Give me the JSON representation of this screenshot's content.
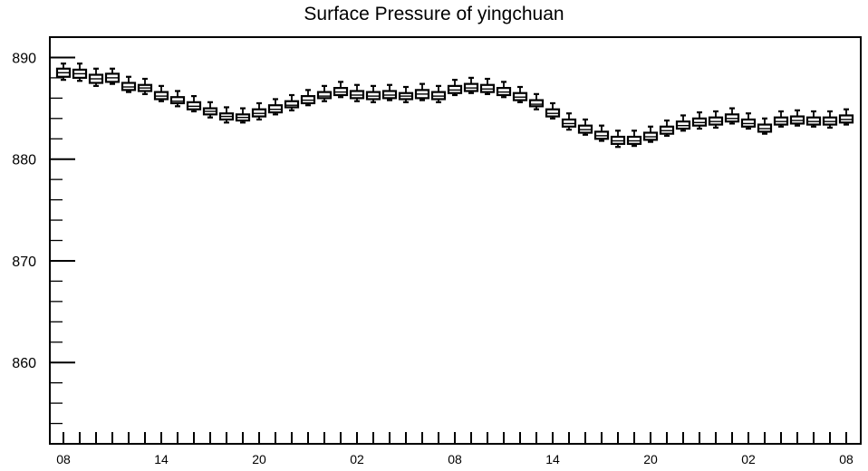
{
  "chart_data": {
    "type": "box",
    "title": "Surface Pressure of yingchuan",
    "xlabel": "",
    "ylabel": "",
    "ylim": [
      852,
      892
    ],
    "y_ticks": [
      "860",
      "870",
      "880",
      "890"
    ],
    "x_tick_labels": [
      "08",
      "14",
      "20",
      "02",
      "08",
      "14",
      "20",
      "02",
      "08"
    ],
    "grid": false,
    "boxes": [
      {
        "hour": 0,
        "whisker_low": 887.8,
        "q1": 888.1,
        "median": 888.5,
        "q3": 888.9,
        "whisker_high": 889.4
      },
      {
        "hour": 1,
        "whisker_low": 887.7,
        "q1": 888.0,
        "median": 888.4,
        "q3": 888.8,
        "whisker_high": 889.4
      },
      {
        "hour": 2,
        "whisker_low": 887.2,
        "q1": 887.5,
        "median": 887.9,
        "q3": 888.3,
        "whisker_high": 888.9
      },
      {
        "hour": 3,
        "whisker_low": 887.4,
        "q1": 887.6,
        "median": 888.0,
        "q3": 888.4,
        "whisker_high": 888.9
      },
      {
        "hour": 4,
        "whisker_low": 886.6,
        "q1": 886.8,
        "median": 887.1,
        "q3": 887.5,
        "whisker_high": 888.1
      },
      {
        "hour": 5,
        "whisker_low": 886.4,
        "q1": 886.7,
        "median": 887.0,
        "q3": 887.3,
        "whisker_high": 887.9
      },
      {
        "hour": 6,
        "whisker_low": 885.7,
        "q1": 885.9,
        "median": 886.2,
        "q3": 886.6,
        "whisker_high": 887.2
      },
      {
        "hour": 7,
        "whisker_low": 885.2,
        "q1": 885.5,
        "median": 885.7,
        "q3": 886.1,
        "whisker_high": 886.7
      },
      {
        "hour": 8,
        "whisker_low": 884.7,
        "q1": 884.9,
        "median": 885.2,
        "q3": 885.6,
        "whisker_high": 886.2
      },
      {
        "hour": 9,
        "whisker_low": 884.1,
        "q1": 884.4,
        "median": 884.7,
        "q3": 885.0,
        "whisker_high": 885.6
      },
      {
        "hour": 10,
        "whisker_low": 883.6,
        "q1": 883.9,
        "median": 884.2,
        "q3": 884.5,
        "whisker_high": 885.1
      },
      {
        "hour": 11,
        "whisker_low": 883.6,
        "q1": 883.8,
        "median": 884.1,
        "q3": 884.4,
        "whisker_high": 885.0
      },
      {
        "hour": 12,
        "whisker_low": 883.9,
        "q1": 884.2,
        "median": 884.5,
        "q3": 884.9,
        "whisker_high": 885.5
      },
      {
        "hour": 13,
        "whisker_low": 884.4,
        "q1": 884.6,
        "median": 884.9,
        "q3": 885.3,
        "whisker_high": 885.9
      },
      {
        "hour": 14,
        "whisker_low": 884.8,
        "q1": 885.1,
        "median": 885.3,
        "q3": 885.7,
        "whisker_high": 886.3
      },
      {
        "hour": 15,
        "whisker_low": 885.3,
        "q1": 885.5,
        "median": 885.8,
        "q3": 886.2,
        "whisker_high": 886.8
      },
      {
        "hour": 16,
        "whisker_low": 885.7,
        "q1": 886.0,
        "median": 886.2,
        "q3": 886.6,
        "whisker_high": 887.2
      },
      {
        "hour": 17,
        "whisker_low": 886.1,
        "q1": 886.3,
        "median": 886.6,
        "q3": 887.0,
        "whisker_high": 887.6
      },
      {
        "hour": 18,
        "whisker_low": 885.7,
        "q1": 886.0,
        "median": 886.3,
        "q3": 886.7,
        "whisker_high": 887.3
      },
      {
        "hour": 19,
        "whisker_low": 885.6,
        "q1": 885.9,
        "median": 886.2,
        "q3": 886.6,
        "whisker_high": 887.2
      },
      {
        "hour": 20,
        "whisker_low": 885.8,
        "q1": 886.0,
        "median": 886.3,
        "q3": 886.7,
        "whisker_high": 887.3
      },
      {
        "hour": 21,
        "whisker_low": 885.6,
        "q1": 885.9,
        "median": 886.2,
        "q3": 886.5,
        "whisker_high": 887.1
      },
      {
        "hour": 22,
        "whisker_low": 885.8,
        "q1": 886.0,
        "median": 886.4,
        "q3": 886.8,
        "whisker_high": 887.4
      },
      {
        "hour": 23,
        "whisker_low": 885.6,
        "q1": 885.9,
        "median": 886.2,
        "q3": 886.6,
        "whisker_high": 887.2
      },
      {
        "hour": 24,
        "whisker_low": 886.3,
        "q1": 886.5,
        "median": 886.8,
        "q3": 887.2,
        "whisker_high": 887.8
      },
      {
        "hour": 25,
        "whisker_low": 886.5,
        "q1": 886.7,
        "median": 887.0,
        "q3": 887.4,
        "whisker_high": 888.0
      },
      {
        "hour": 26,
        "whisker_low": 886.4,
        "q1": 886.6,
        "median": 886.9,
        "q3": 887.3,
        "whisker_high": 887.9
      },
      {
        "hour": 27,
        "whisker_low": 886.1,
        "q1": 886.3,
        "median": 886.6,
        "q3": 887.0,
        "whisker_high": 887.6
      },
      {
        "hour": 28,
        "whisker_low": 885.6,
        "q1": 885.8,
        "median": 886.1,
        "q3": 886.5,
        "whisker_high": 887.1
      },
      {
        "hour": 29,
        "whisker_low": 884.9,
        "q1": 885.2,
        "median": 885.4,
        "q3": 885.8,
        "whisker_high": 886.4
      },
      {
        "hour": 30,
        "whisker_low": 884.0,
        "q1": 884.2,
        "median": 884.5,
        "q3": 884.9,
        "whisker_high": 885.5
      },
      {
        "hour": 31,
        "whisker_low": 882.9,
        "q1": 883.2,
        "median": 883.5,
        "q3": 883.9,
        "whisker_high": 884.5
      },
      {
        "hour": 32,
        "whisker_low": 882.4,
        "q1": 882.6,
        "median": 882.9,
        "q3": 883.3,
        "whisker_high": 883.9
      },
      {
        "hour": 33,
        "whisker_low": 881.8,
        "q1": 882.0,
        "median": 882.3,
        "q3": 882.7,
        "whisker_high": 883.3
      },
      {
        "hour": 34,
        "whisker_low": 881.2,
        "q1": 881.5,
        "median": 881.8,
        "q3": 882.2,
        "whisker_high": 882.8
      },
      {
        "hour": 35,
        "whisker_low": 881.3,
        "q1": 881.5,
        "median": 881.8,
        "q3": 882.2,
        "whisker_high": 882.8
      },
      {
        "hour": 36,
        "whisker_low": 881.7,
        "q1": 881.9,
        "median": 882.2,
        "q3": 882.6,
        "whisker_high": 883.2
      },
      {
        "hour": 37,
        "whisker_low": 882.3,
        "q1": 882.5,
        "median": 882.8,
        "q3": 883.2,
        "whisker_high": 883.8
      },
      {
        "hour": 38,
        "whisker_low": 882.8,
        "q1": 883.0,
        "median": 883.3,
        "q3": 883.7,
        "whisker_high": 884.3
      },
      {
        "hour": 39,
        "whisker_low": 883.0,
        "q1": 883.3,
        "median": 883.6,
        "q3": 884.0,
        "whisker_high": 884.6
      },
      {
        "hour": 40,
        "whisker_low": 883.1,
        "q1": 883.4,
        "median": 883.7,
        "q3": 884.1,
        "whisker_high": 884.7
      },
      {
        "hour": 41,
        "whisker_low": 883.5,
        "q1": 883.7,
        "median": 884.0,
        "q3": 884.4,
        "whisker_high": 885.0
      },
      {
        "hour": 42,
        "whisker_low": 883.0,
        "q1": 883.2,
        "median": 883.5,
        "q3": 883.9,
        "whisker_high": 884.5
      },
      {
        "hour": 43,
        "whisker_low": 882.5,
        "q1": 882.7,
        "median": 883.0,
        "q3": 883.4,
        "whisker_high": 884.0
      },
      {
        "hour": 44,
        "whisker_low": 883.2,
        "q1": 883.4,
        "median": 883.7,
        "q3": 884.1,
        "whisker_high": 884.7
      },
      {
        "hour": 45,
        "whisker_low": 883.3,
        "q1": 883.5,
        "median": 883.8,
        "q3": 884.2,
        "whisker_high": 884.8
      },
      {
        "hour": 46,
        "whisker_low": 883.2,
        "q1": 883.4,
        "median": 883.7,
        "q3": 884.1,
        "whisker_high": 884.7
      },
      {
        "hour": 47,
        "whisker_low": 883.1,
        "q1": 883.4,
        "median": 883.7,
        "q3": 884.1,
        "whisker_high": 884.7
      },
      {
        "hour": 48,
        "whisker_low": 883.4,
        "q1": 883.6,
        "median": 883.9,
        "q3": 884.3,
        "whisker_high": 884.9
      }
    ]
  }
}
